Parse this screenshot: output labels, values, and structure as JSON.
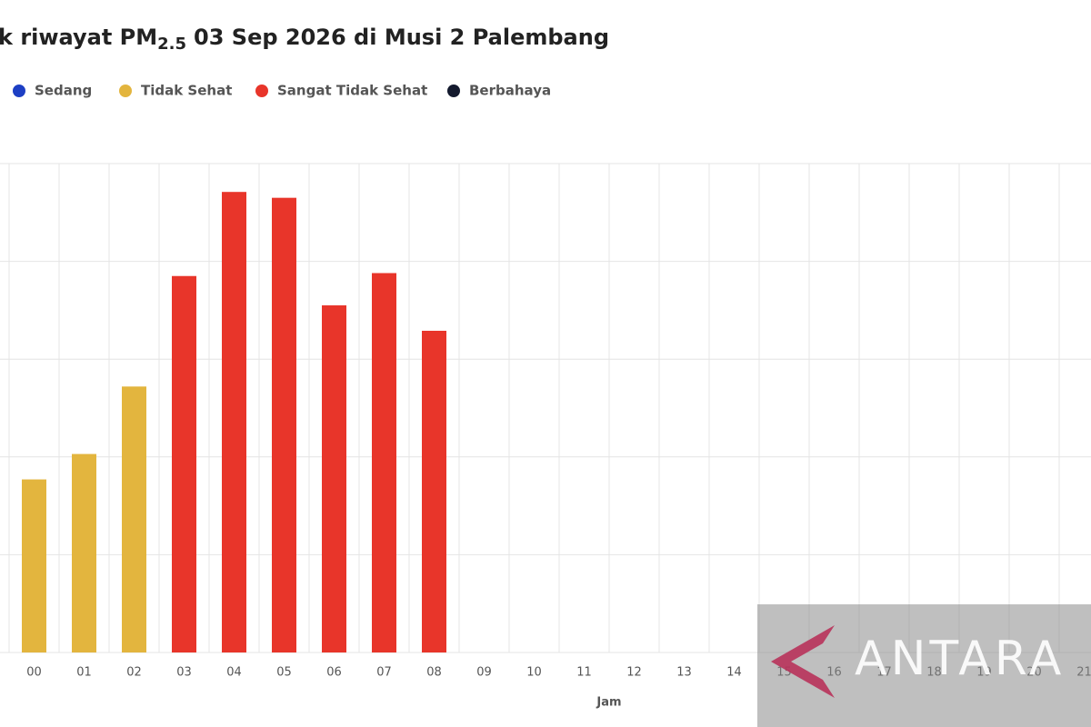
{
  "chart_data": {
    "type": "bar",
    "title": {
      "prefix": "k riwayat PM",
      "subscript": "2.5",
      "suffix": "03 Sep 2026 di Musi 2 Palembang"
    },
    "x_label": "Jam",
    "categories": [
      "00",
      "01",
      "02",
      "03",
      "04",
      "05",
      "06",
      "07",
      "08",
      "09",
      "10",
      "11",
      "12",
      "13",
      "14",
      "15",
      "16",
      "17",
      "18",
      "19",
      "20",
      "21"
    ],
    "series": [
      {
        "name": "Sedang",
        "color": "#1d3fc4",
        "values": [
          null,
          null,
          null,
          null,
          null,
          null,
          null,
          null,
          null,
          null,
          null,
          null,
          null,
          null,
          null,
          null,
          null,
          null,
          null,
          null,
          null,
          null
        ]
      },
      {
        "name": "Tidak Sehat",
        "color": "#e3b53e",
        "values": [
          1.77,
          2.03,
          2.72,
          null,
          null,
          null,
          null,
          null,
          null,
          null,
          null,
          null,
          null,
          null,
          null,
          null,
          null,
          null,
          null,
          null,
          null,
          null
        ]
      },
      {
        "name": "Sangat Tidak Sehat",
        "color": "#e8352a",
        "values": [
          null,
          null,
          null,
          3.85,
          4.71,
          4.65,
          3.55,
          3.88,
          3.29,
          null,
          null,
          null,
          null,
          null,
          null,
          null,
          null,
          null,
          null,
          null,
          null,
          null
        ]
      },
      {
        "name": "Berbahaya",
        "color": "#141a2e",
        "values": [
          null,
          null,
          null,
          null,
          null,
          null,
          null,
          null,
          null,
          null,
          null,
          null,
          null,
          null,
          null,
          null,
          null,
          null,
          null,
          null,
          null,
          null
        ]
      }
    ],
    "ylim": [
      0,
      5
    ],
    "yticks": [
      0,
      1,
      2,
      3,
      4,
      5
    ],
    "grid": true,
    "watermark": "ANTARA"
  }
}
